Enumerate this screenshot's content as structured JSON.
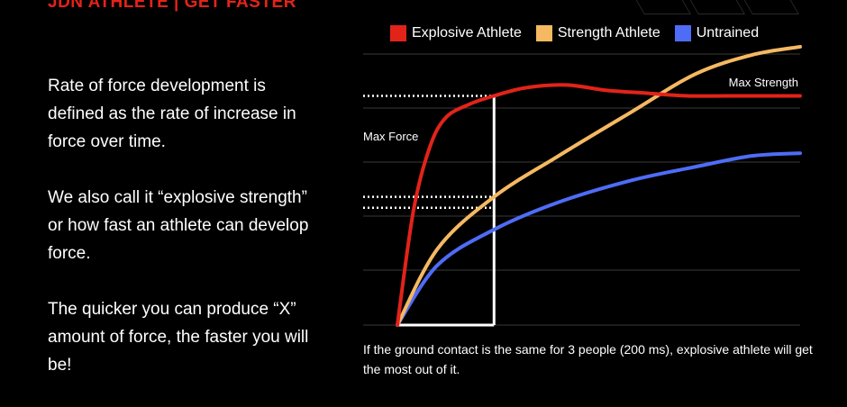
{
  "header": {
    "brand": "JDN ATHLETE  |  GET FASTER"
  },
  "body_text": {
    "p1": "Rate of force development is defined as the rate of increase in force over time.",
    "p2": "We also call it “explosive strength” or how fast an athlete can develop force.",
    "p3": "The quicker you can produce “X” amount of force, the faster you will be!"
  },
  "caption": "If the ground contact is the same for 3 people (200 ms), explosive athlete will get the most out of it.",
  "colors": {
    "background": "#000000",
    "brand": "#e2231a",
    "explosive": "#e2231a",
    "strength": "#f5b962",
    "untrained": "#4f6cf7",
    "grid": "#3a3a3a",
    "marker": "#ffffff"
  },
  "chart_data": {
    "type": "line",
    "title": "",
    "xlabel": "",
    "ylabel": "",
    "xlim": [
      0,
      100
    ],
    "ylim": [
      0,
      100
    ],
    "grid": true,
    "legend_placement": "top",
    "series": [
      {
        "name": "Explosive Athlete",
        "x": [
          0,
          4,
          8,
          12,
          18,
          24,
          32,
          42,
          52,
          62,
          72,
          82,
          100
        ],
        "y": [
          0,
          42,
          65,
          76,
          81,
          84,
          87,
          88,
          86,
          85,
          84,
          84,
          84
        ]
      },
      {
        "name": "Strength Athlete",
        "x": [
          0,
          10,
          24,
          40,
          58,
          74,
          88,
          100
        ],
        "y": [
          0,
          28,
          47,
          62,
          78,
          92,
          99,
          102
        ]
      },
      {
        "name": "Untrained",
        "x": [
          0,
          10,
          24,
          40,
          58,
          74,
          88,
          100
        ],
        "y": [
          0,
          22,
          35,
          45,
          53,
          58,
          62,
          63
        ]
      }
    ],
    "annotations": {
      "max_force": {
        "label": "Max Force",
        "x": 24,
        "y": 84
      },
      "max_strength": {
        "label": "Max Strength"
      },
      "contact_marker_x": 24,
      "level_lines_y": [
        84,
        47,
        43
      ]
    }
  }
}
